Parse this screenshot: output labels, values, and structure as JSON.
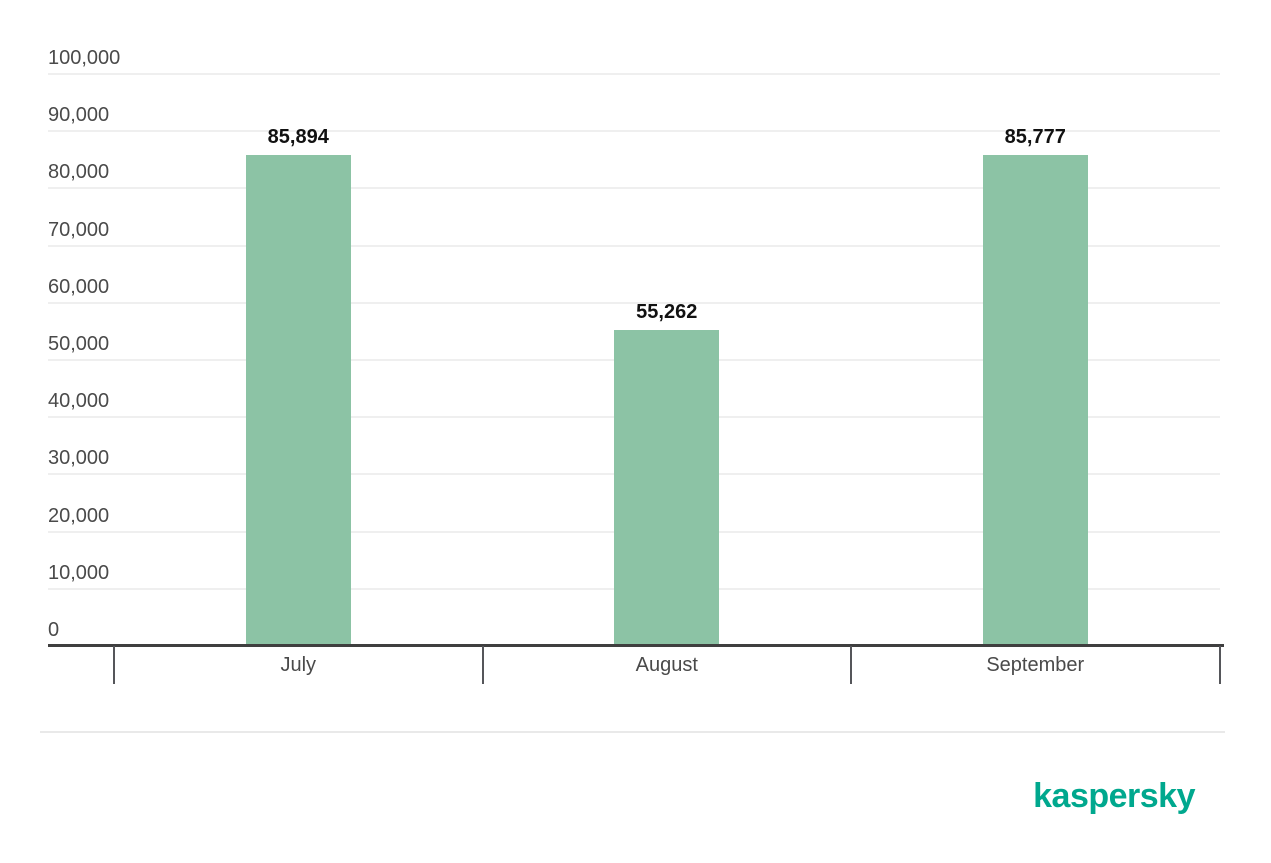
{
  "chart_data": {
    "type": "bar",
    "title": "",
    "xlabel": "",
    "ylabel": "",
    "categories": [
      "July",
      "August",
      "September"
    ],
    "values": [
      85894,
      55262,
      85777
    ],
    "value_labels": [
      "85,894",
      "55,262",
      "85,777"
    ],
    "ylim": [
      0,
      100000
    ],
    "ytick_step": 10000,
    "ytick_labels": [
      "0",
      "10,000",
      "20,000",
      "30,000",
      "40,000",
      "50,000",
      "60,000",
      "70,000",
      "80,000",
      "90,000",
      "100,000"
    ],
    "grid": "horizontal",
    "legend": "none",
    "bar_color": "#8CC3A5"
  },
  "colors": {
    "background": "#FFFFFF",
    "gridline": "#EFEFEF",
    "axis_line": "#3F3F3F",
    "tick_mark": "#55565A",
    "axis_text": "#4A4A4A",
    "value_label_text": "#111111",
    "divider": "#E9E9E9",
    "logo": "#00A88E"
  },
  "footer": {
    "logo_text": "kaspersky"
  }
}
